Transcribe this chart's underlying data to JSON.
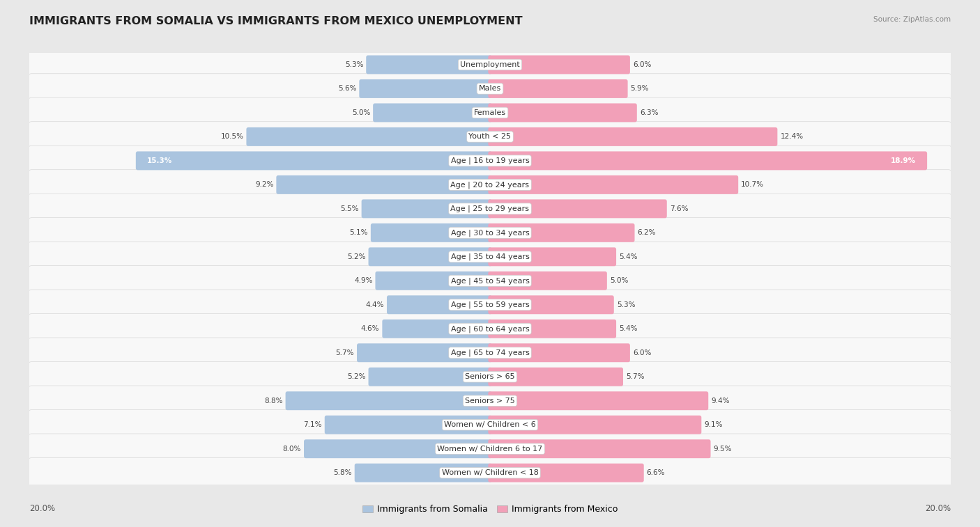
{
  "title": "IMMIGRANTS FROM SOMALIA VS IMMIGRANTS FROM MEXICO UNEMPLOYMENT",
  "source": "Source: ZipAtlas.com",
  "categories": [
    "Unemployment",
    "Males",
    "Females",
    "Youth < 25",
    "Age | 16 to 19 years",
    "Age | 20 to 24 years",
    "Age | 25 to 29 years",
    "Age | 30 to 34 years",
    "Age | 35 to 44 years",
    "Age | 45 to 54 years",
    "Age | 55 to 59 years",
    "Age | 60 to 64 years",
    "Age | 65 to 74 years",
    "Seniors > 65",
    "Seniors > 75",
    "Women w/ Children < 6",
    "Women w/ Children 6 to 17",
    "Women w/ Children < 18"
  ],
  "somalia_values": [
    5.3,
    5.6,
    5.0,
    10.5,
    15.3,
    9.2,
    5.5,
    5.1,
    5.2,
    4.9,
    4.4,
    4.6,
    5.7,
    5.2,
    8.8,
    7.1,
    8.0,
    5.8
  ],
  "mexico_values": [
    6.0,
    5.9,
    6.3,
    12.4,
    18.9,
    10.7,
    7.6,
    6.2,
    5.4,
    5.0,
    5.3,
    5.4,
    6.0,
    5.7,
    9.4,
    9.1,
    9.5,
    6.6
  ],
  "somalia_color": "#aac4df",
  "mexico_color": "#f2a0b8",
  "somalia_label": "Immigrants from Somalia",
  "mexico_label": "Immigrants from Mexico",
  "max_value": 20.0,
  "bg_color": "#e8e8e8",
  "row_bg_even": "#f5f5f5",
  "row_bg_odd": "#ffffff",
  "title_color": "#222222",
  "title_fontsize": 11.5,
  "cat_fontsize": 8.0,
  "value_fontsize": 7.5,
  "legend_fontsize": 9.0
}
